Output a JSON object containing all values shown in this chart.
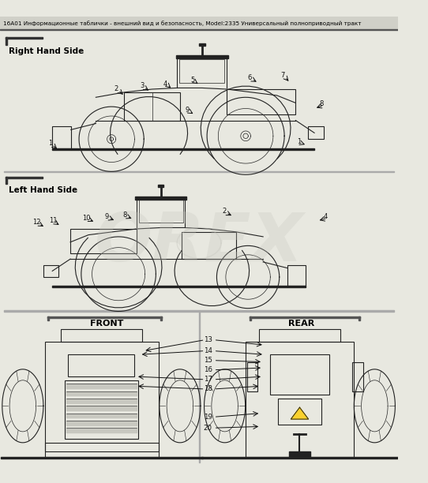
{
  "title": "16A01 Информационные таблички - внешний вид и безопасность, Model:2335 Универсальный полноприводный тракт",
  "bg_color": "#e8e8e0",
  "title_color": "#000000",
  "watermark_text": "OREX",
  "label_rhs": "Right Hand Side",
  "label_lhs": "Left Hand Side",
  "label_front": "FRONT",
  "label_rear": "REAR"
}
